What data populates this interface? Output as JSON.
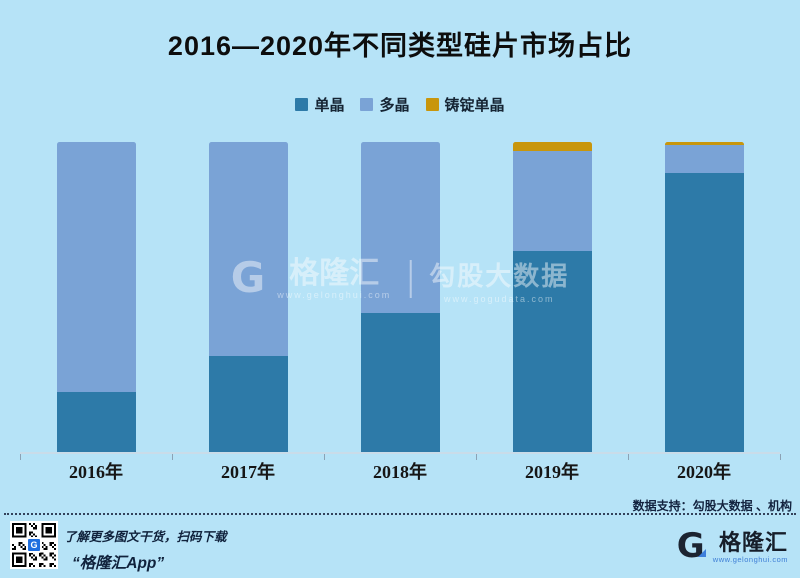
{
  "chart_data": {
    "type": "bar",
    "stacked": true,
    "unit": "%",
    "title": "2016—2020年不同类型硅片市场占比",
    "categories": [
      "2016年",
      "2017年",
      "2018年",
      "2019年",
      "2020年"
    ],
    "series": [
      {
        "name": "单晶",
        "color": "#2d7aa8",
        "values": [
          19.5,
          31,
          45,
          65,
          90
        ]
      },
      {
        "name": "多晶",
        "color": "#7aa3d6",
        "values": [
          80.5,
          69,
          55,
          32,
          9
        ]
      },
      {
        "name": "铸锭单晶",
        "color": "#c8960c",
        "values": [
          0,
          0,
          0,
          3,
          1
        ]
      }
    ],
    "ylim": [
      0,
      100
    ],
    "grid": false,
    "legend_position": "top",
    "background_color": "#b6e3f7"
  },
  "watermark": {
    "brand": "格隆汇",
    "brand_url": "www.gelonghui.com",
    "partner": "勾股大数据",
    "partner_url": "www.gogudata.com",
    "logo_letter": "G"
  },
  "footer": {
    "data_support": "数据支持：勾股大数据 、机构",
    "promo_line1": "了解更多图文干货，扫码下载",
    "promo_line2": "“格隆汇App”",
    "logo_letter": "G",
    "logo_name": "格隆汇",
    "logo_url": "www.gelonghui.com"
  }
}
